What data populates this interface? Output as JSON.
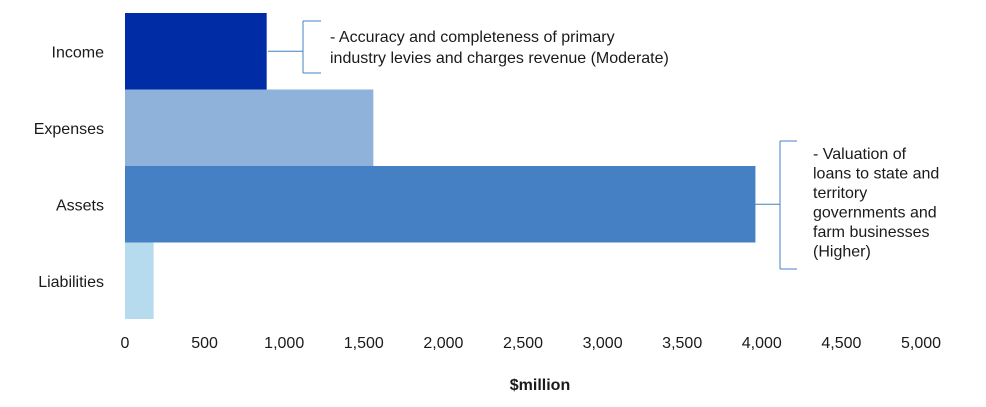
{
  "chart_data": {
    "type": "bar",
    "orientation": "horizontal",
    "categories": [
      "Income",
      "Expenses",
      "Assets",
      "Liabilities"
    ],
    "values": [
      890,
      1560,
      3960,
      180
    ],
    "bar_colors": [
      "#002da6",
      "#8eb2da",
      "#4580c5",
      "#b6dbee"
    ],
    "xlabel": "$million",
    "xlim": [
      0,
      5000
    ],
    "xticks": [
      0,
      500,
      1000,
      1500,
      2000,
      2500,
      3000,
      3500,
      4000,
      4500,
      5000
    ],
    "xtick_labels": [
      "0",
      "500",
      "1,000",
      "1,500",
      "2,000",
      "2,500",
      "3,000",
      "3,500",
      "4,000",
      "4,500",
      "5,000"
    ],
    "grid": false,
    "legend": "none",
    "annotations": [
      {
        "category": "Income",
        "lines": [
          "- Accuracy and completeness of primary",
          "industry levies and charges revenue (Moderate)"
        ]
      },
      {
        "category": "Assets",
        "lines": [
          "- Valuation of",
          "loans to state and",
          "territory",
          "governments and",
          "farm businesses",
          "(Higher)"
        ]
      }
    ]
  }
}
